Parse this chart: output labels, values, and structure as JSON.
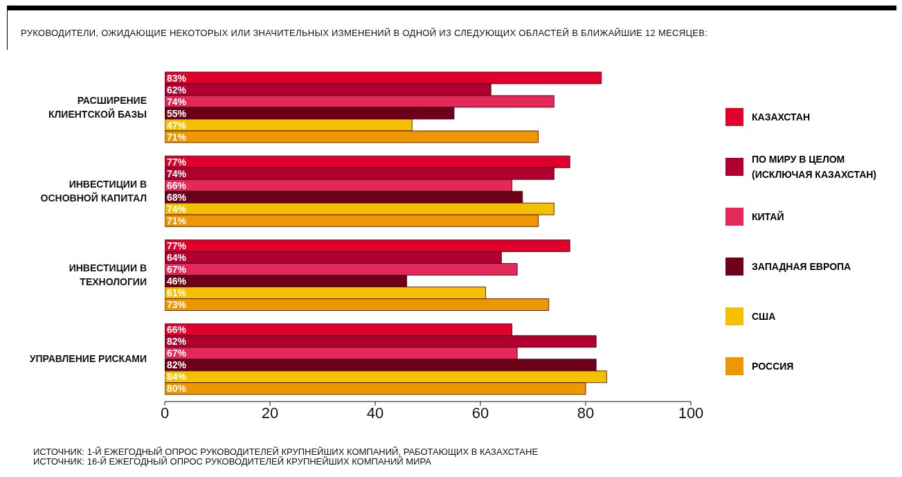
{
  "chart_data": {
    "type": "bar",
    "orientation": "horizontal",
    "title": "РУКОВОДИТЕЛИ, ОЖИДАЮЩИЕ НЕКОТОРЫХ ИЛИ ЗНАЧИТЕЛЬНЫХ ИЗМЕНЕНИЙ В ОДНОЙ ИЗ СЛЕДУЮЩИХ ОБЛАСТЕЙ В БЛИЖАЙШИЕ 12 МЕСЯЦЕВ:",
    "categories": [
      "РАСШИРЕНИЕ КЛИЕНТСКОЙ БАЗЫ",
      "ИНВЕСТИЦИИ В ОСНОВНОЙ КАПИТАЛ",
      "ИНВЕСТИЦИИ В ТЕХНОЛОГИИ",
      "УПРАВЛЕНИЕ РИСКАМИ"
    ],
    "series": [
      {
        "name": "КАЗАХСТАН",
        "color": "#e0002b",
        "values": [
          83,
          77,
          77,
          66
        ],
        "value_labels": [
          "83%",
          "77%",
          "77%",
          "66%"
        ]
      },
      {
        "name": "ПО МИРУ В ЦЕЛОМ (ИСКЛЮЧАЯ КАЗАХСТАН)",
        "color": "#b0002f",
        "values": [
          62,
          74,
          64,
          82
        ],
        "value_labels": [
          "62%",
          "74%",
          "64%",
          "82%"
        ]
      },
      {
        "name": "КИТАЙ",
        "color": "#e5285a",
        "values": [
          74,
          66,
          67,
          67
        ],
        "value_labels": [
          "74%",
          "66%",
          "67%",
          "67%"
        ]
      },
      {
        "name": "ЗАПАДНАЯ ЕВРОПА",
        "color": "#6e0019",
        "values": [
          55,
          68,
          46,
          82
        ],
        "value_labels": [
          "55%",
          "68%",
          "46%",
          "82%"
        ]
      },
      {
        "name": "США",
        "color": "#f5c000",
        "values": [
          47,
          74,
          61,
          84
        ],
        "value_labels": [
          "47%",
          "74%",
          "61%",
          "84%"
        ]
      },
      {
        "name": "РОССИЯ",
        "color": "#ee9600",
        "values": [
          71,
          71,
          73,
          80
        ],
        "value_labels": [
          "71%",
          "71%",
          "73%",
          "80%"
        ]
      }
    ],
    "xlim": [
      0,
      100
    ],
    "xticks": [
      0,
      20,
      40,
      60,
      80,
      100
    ],
    "legend": "right",
    "annotations": [
      "ИСТОЧНИК: 1-Й ЕЖЕГОДНЫЙ ОПРОС РУКОВОДИТЕЛЕЙ КРУПНЕЙШИХ КОМПАНИЙ, РАБОТАЮЩИХ В КАЗАХСТАНЕ",
      "ИСТОЧНИК: 16-Й ЕЖЕГОДНЫЙ ОПРОС РУКОВОДИТЕЛЕЙ КРУПНЕЙШИХ КОМПАНИЙ МИРА"
    ]
  }
}
